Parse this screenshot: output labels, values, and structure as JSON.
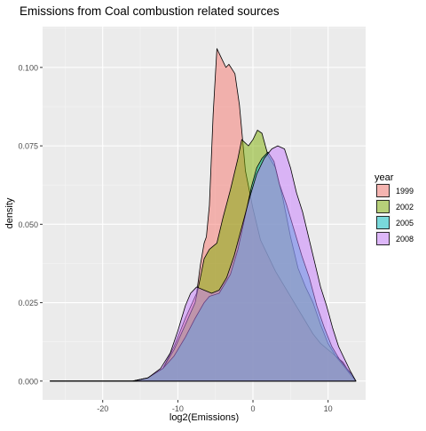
{
  "chart_data": {
    "type": "area",
    "title": "Emissions from Coal combustion related sources",
    "xlabel": "log2(Emissions)",
    "ylabel": "density",
    "xlim": [
      -28,
      15
    ],
    "ylim": [
      -0.006,
      0.113
    ],
    "x_ticks": [
      -20,
      -10,
      0,
      10
    ],
    "x_tick_labels": [
      "-20",
      "-10",
      "0",
      "10"
    ],
    "y_ticks": [
      0.0,
      0.025,
      0.05,
      0.075,
      0.1
    ],
    "y_tick_labels": [
      "0.000",
      "0.025",
      "0.050",
      "0.075",
      "0.100"
    ],
    "grid": true,
    "legend": {
      "title": "year",
      "placement": "right"
    },
    "series": [
      {
        "name": "1999",
        "color": "#F8766D",
        "points": [
          [
            -27,
            0
          ],
          [
            -16,
            0
          ],
          [
            -14,
            0.001
          ],
          [
            -12,
            0.004
          ],
          [
            -10.5,
            0.011
          ],
          [
            -9,
            0.02
          ],
          [
            -7.5,
            0.028
          ],
          [
            -7,
            0.037
          ],
          [
            -6.5,
            0.044
          ],
          [
            -6.2,
            0.046
          ],
          [
            -5.8,
            0.056
          ],
          [
            -5.3,
            0.085
          ],
          [
            -4.8,
            0.106
          ],
          [
            -4.2,
            0.103
          ],
          [
            -3.6,
            0.1
          ],
          [
            -3.2,
            0.101
          ],
          [
            -2.4,
            0.098
          ],
          [
            -1.8,
            0.088
          ],
          [
            -1,
            0.067
          ],
          [
            0,
            0.055
          ],
          [
            1,
            0.045
          ],
          [
            2,
            0.04
          ],
          [
            3,
            0.035
          ],
          [
            4,
            0.031
          ],
          [
            5,
            0.027
          ],
          [
            6,
            0.023
          ],
          [
            7,
            0.019
          ],
          [
            8,
            0.015
          ],
          [
            9,
            0.012
          ],
          [
            10,
            0.01
          ],
          [
            11,
            0.008
          ],
          [
            12,
            0.006
          ],
          [
            13,
            0.002
          ],
          [
            13.7,
            0
          ]
        ]
      },
      {
        "name": "2002",
        "color": "#7CAE00",
        "points": [
          [
            -27,
            0
          ],
          [
            -16,
            0
          ],
          [
            -14,
            0.001
          ],
          [
            -12,
            0.004
          ],
          [
            -10.5,
            0.01
          ],
          [
            -9,
            0.018
          ],
          [
            -7.7,
            0.025
          ],
          [
            -7,
            0.033
          ],
          [
            -6.5,
            0.039
          ],
          [
            -5.8,
            0.042
          ],
          [
            -4.8,
            0.044
          ],
          [
            -4,
            0.052
          ],
          [
            -3,
            0.061
          ],
          [
            -2,
            0.071
          ],
          [
            -1.5,
            0.077
          ],
          [
            -0.6,
            0.075
          ],
          [
            0,
            0.077
          ],
          [
            0.6,
            0.08
          ],
          [
            1.2,
            0.079
          ],
          [
            2,
            0.072
          ],
          [
            3,
            0.068
          ],
          [
            4,
            0.058
          ],
          [
            5,
            0.046
          ],
          [
            6,
            0.036
          ],
          [
            7,
            0.03
          ],
          [
            8,
            0.025
          ],
          [
            9,
            0.018
          ],
          [
            10,
            0.012
          ],
          [
            11,
            0.008
          ],
          [
            12,
            0.005
          ],
          [
            13,
            0.002
          ],
          [
            13.7,
            0
          ]
        ]
      },
      {
        "name": "2005",
        "color": "#00BFC4",
        "points": [
          [
            -27,
            0
          ],
          [
            -16,
            0
          ],
          [
            -14,
            0.001
          ],
          [
            -12,
            0.004
          ],
          [
            -10.5,
            0.008
          ],
          [
            -9,
            0.014
          ],
          [
            -7.7,
            0.02
          ],
          [
            -6.5,
            0.025
          ],
          [
            -5.8,
            0.027
          ],
          [
            -4.5,
            0.028
          ],
          [
            -3,
            0.034
          ],
          [
            -2,
            0.042
          ],
          [
            -1,
            0.053
          ],
          [
            -0.2,
            0.062
          ],
          [
            0.5,
            0.068
          ],
          [
            1.2,
            0.071
          ],
          [
            2,
            0.073
          ],
          [
            2.8,
            0.07
          ],
          [
            3.5,
            0.063
          ],
          [
            4.5,
            0.056
          ],
          [
            5.5,
            0.048
          ],
          [
            6.5,
            0.04
          ],
          [
            7.5,
            0.033
          ],
          [
            8.5,
            0.024
          ],
          [
            9.5,
            0.017
          ],
          [
            10.5,
            0.011
          ],
          [
            11.5,
            0.007
          ],
          [
            12.5,
            0.004
          ],
          [
            13.2,
            0.002
          ],
          [
            13.7,
            0
          ]
        ]
      },
      {
        "name": "2008",
        "color": "#C77CFF",
        "points": [
          [
            -27,
            0
          ],
          [
            -16,
            0
          ],
          [
            -14,
            0.001
          ],
          [
            -12.3,
            0.004
          ],
          [
            -11,
            0.009
          ],
          [
            -10,
            0.016
          ],
          [
            -9,
            0.024
          ],
          [
            -8.3,
            0.028
          ],
          [
            -7.5,
            0.03
          ],
          [
            -6.5,
            0.029
          ],
          [
            -5.5,
            0.028
          ],
          [
            -4.5,
            0.029
          ],
          [
            -3.5,
            0.033
          ],
          [
            -2.5,
            0.04
          ],
          [
            -1.5,
            0.049
          ],
          [
            -0.5,
            0.058
          ],
          [
            0.5,
            0.066
          ],
          [
            1.5,
            0.071
          ],
          [
            2.5,
            0.074
          ],
          [
            3.3,
            0.075
          ],
          [
            4.2,
            0.074
          ],
          [
            5,
            0.068
          ],
          [
            5.8,
            0.06
          ],
          [
            6.6,
            0.054
          ],
          [
            7.4,
            0.046
          ],
          [
            8.2,
            0.038
          ],
          [
            9,
            0.03
          ],
          [
            9.8,
            0.024
          ],
          [
            10.6,
            0.017
          ],
          [
            11.4,
            0.011
          ],
          [
            12.2,
            0.007
          ],
          [
            13,
            0.003
          ],
          [
            13.7,
            0
          ]
        ]
      }
    ]
  }
}
